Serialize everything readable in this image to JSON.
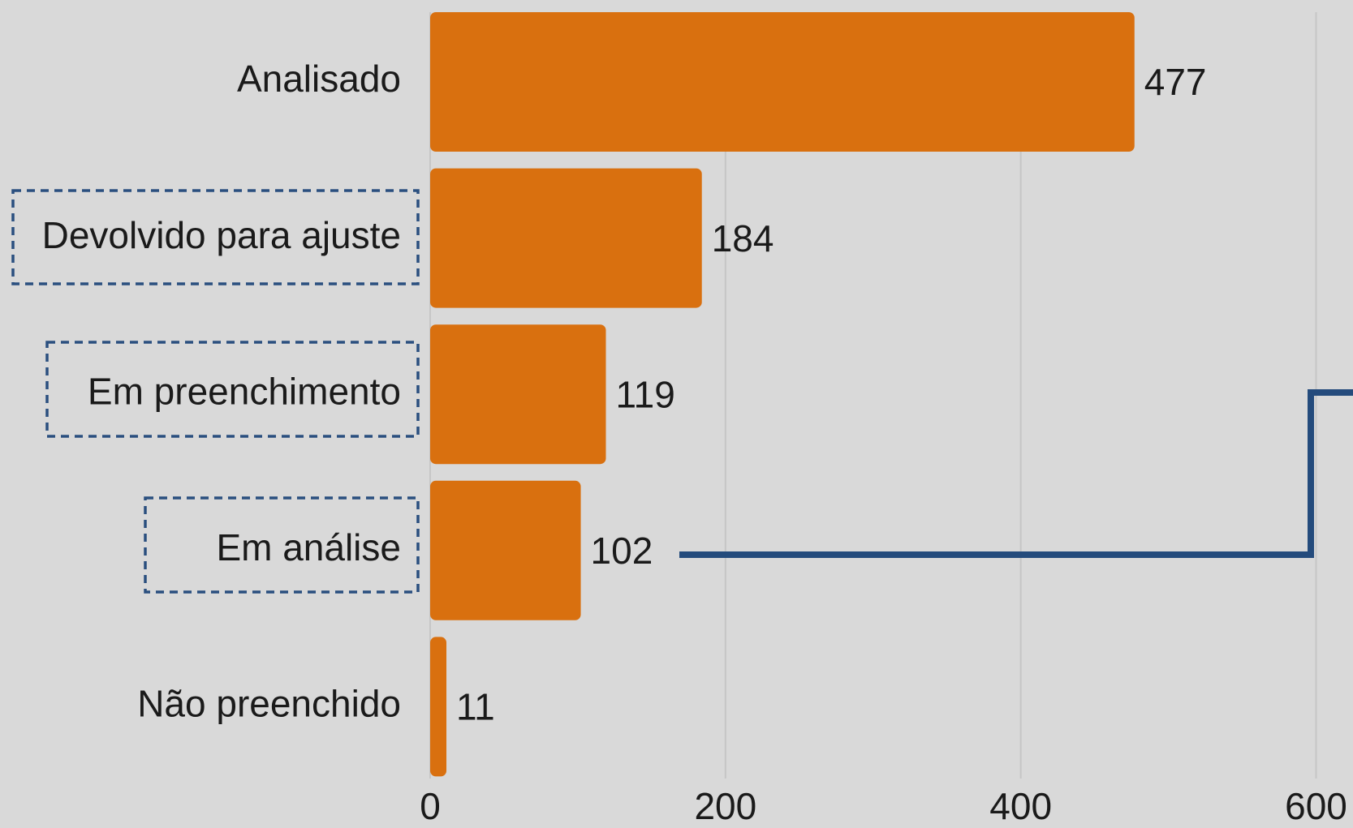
{
  "chart_data": {
    "type": "bar",
    "orientation": "horizontal",
    "categories": [
      "Analisado",
      "Devolvido para ajuste",
      "Em preenchimento",
      "Em análise",
      "Não preenchido"
    ],
    "values": [
      477,
      184,
      119,
      102,
      11
    ],
    "color": "#d9700f",
    "xlim": [
      0,
      625
    ],
    "xticks": [
      0,
      200,
      400,
      600
    ],
    "grid": true
  }
}
